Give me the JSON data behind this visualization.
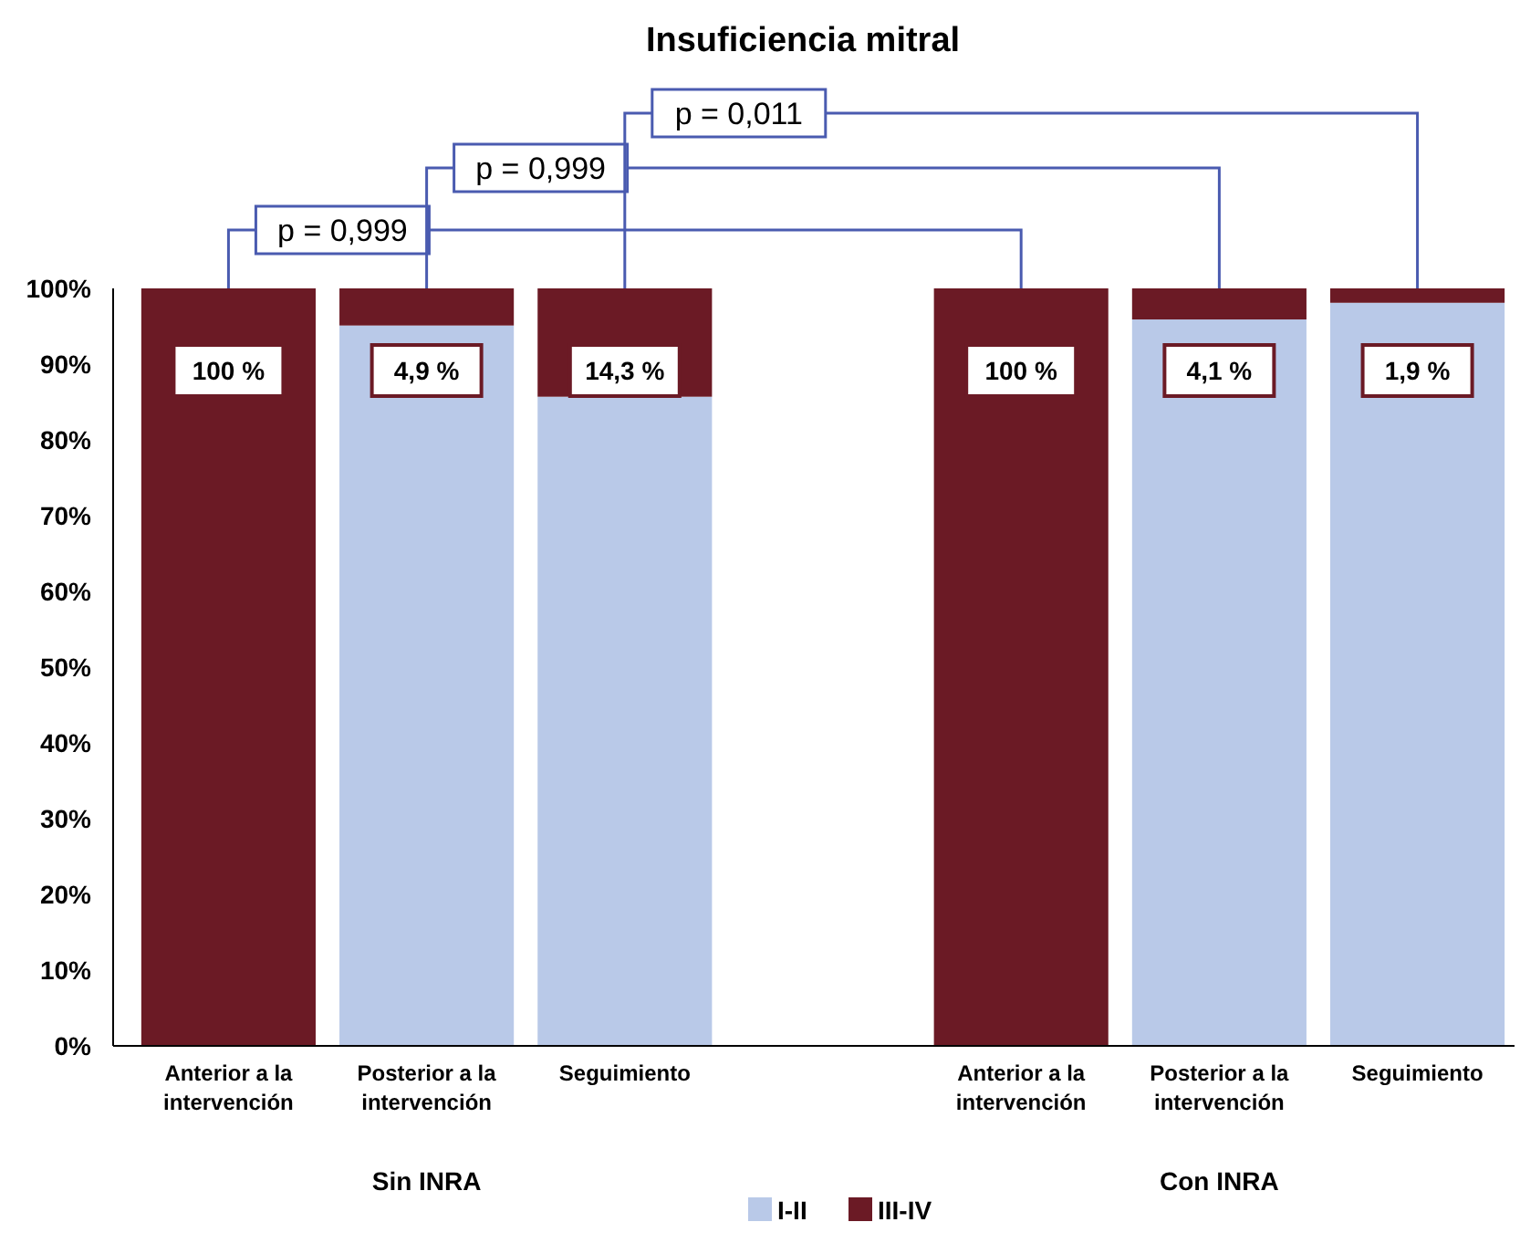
{
  "chart_data": {
    "type": "bar",
    "title": "Insuficiencia mitral",
    "stacked": true,
    "categories": [
      "Anterior a la intervención",
      "Posterior a la intervención",
      "Seguimiento",
      null,
      "Anterior a la intervención",
      "Posterior a la intervención",
      "Seguimiento"
    ],
    "series": [
      {
        "name": "I-II",
        "color": "#b9c9e8",
        "values": [
          0,
          95.1,
          85.7,
          null,
          0,
          95.9,
          98.1
        ]
      },
      {
        "name": "III-IV",
        "color": "#6b1a25",
        "values": [
          100,
          4.9,
          14.3,
          null,
          100,
          4.1,
          1.9
        ],
        "value_labels": [
          "100 %",
          "4,9 %",
          "14,3 %",
          null,
          "100 %",
          "4,1 %",
          "1,9 %"
        ]
      }
    ],
    "ylim": [
      0,
      100
    ],
    "yticks": [
      {
        "value": 0,
        "label": "0%"
      },
      {
        "value": 10,
        "label": "10%"
      },
      {
        "value": 20,
        "label": "20%"
      },
      {
        "value": 30,
        "label": "30%"
      },
      {
        "value": 40,
        "label": "40%"
      },
      {
        "value": 50,
        "label": "50%"
      },
      {
        "value": 60,
        "label": "60%"
      },
      {
        "value": 70,
        "label": "70%"
      },
      {
        "value": 80,
        "label": "80%"
      },
      {
        "value": 90,
        "label": "90%"
      },
      {
        "value": 100,
        "label": "100%"
      }
    ],
    "legend": "bottom",
    "grid": false,
    "annotations": [
      "p = 0,999",
      "p = 0,999",
      "p = 0,011",
      "Sin INRA",
      "Con INRA"
    ]
  }
}
